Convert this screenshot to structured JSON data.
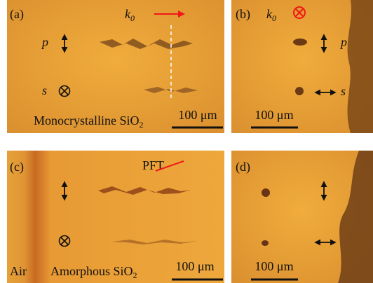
{
  "panels": [
    {
      "label": "(a)",
      "wavevector": {
        "base": "k",
        "sub": "0"
      },
      "p_label": "p",
      "s_label": "s",
      "material": {
        "text": "Monocrystalline SiO",
        "sub": "2"
      },
      "scale": "100 μm"
    },
    {
      "label": "(b)",
      "wavevector": {
        "base": "k",
        "sub": "0"
      },
      "p_label": "p",
      "s_label": "s",
      "scale": "100 μm"
    },
    {
      "label": "(c)",
      "pft": "PFT",
      "medium": "Air",
      "material": {
        "text": "Amorphous SiO",
        "sub": "2"
      },
      "scale": "100 μm"
    },
    {
      "label": "(d)",
      "scale": "100 μm"
    }
  ]
}
